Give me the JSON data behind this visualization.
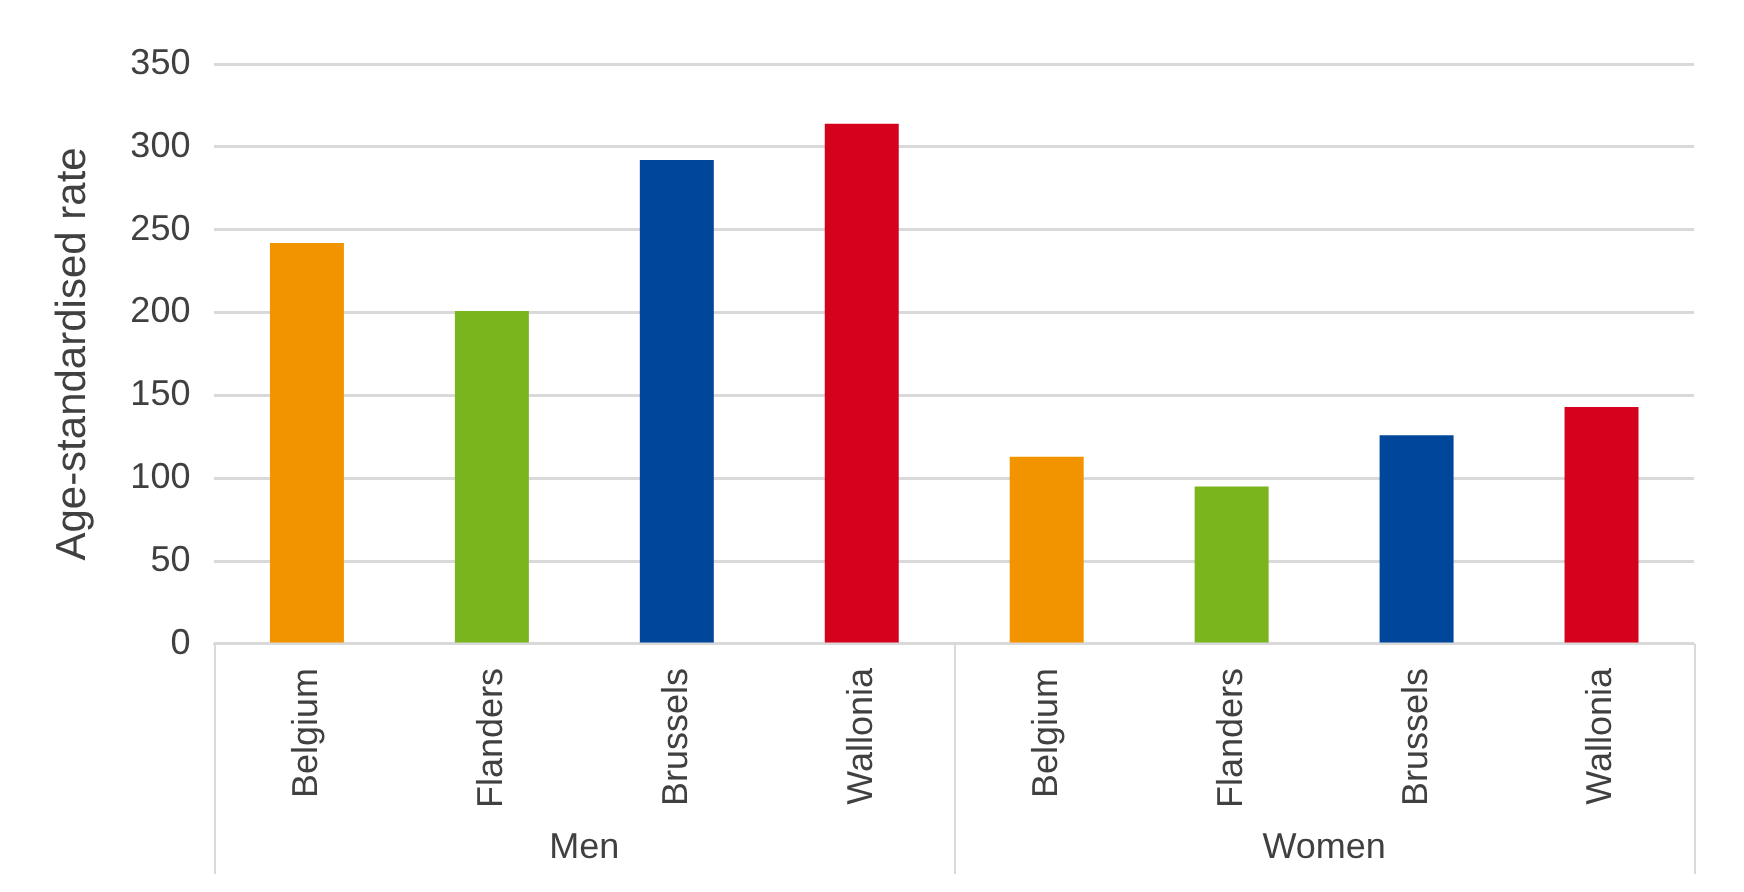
{
  "chart_data": {
    "type": "bar",
    "ylabel": "Age-standardised rate",
    "categories": [
      "Belgium",
      "Flanders",
      "Brussels",
      "Wallonia",
      "Belgium",
      "Flanders",
      "Brussels",
      "Wallonia"
    ],
    "values": [
      242,
      201,
      292,
      314,
      113,
      95,
      126,
      143
    ],
    "colors": [
      "#f29400",
      "#7ab51d",
      "#00469a",
      "#d4021d",
      "#f29400",
      "#7ab51d",
      "#00469a",
      "#d4021d"
    ],
    "annotations": [
      "Men",
      "Women"
    ],
    "ylim": [
      0,
      350
    ],
    "yticks": [
      0,
      50,
      100,
      150,
      200,
      250,
      300,
      350
    ],
    "grid": "y",
    "legend": false
  }
}
